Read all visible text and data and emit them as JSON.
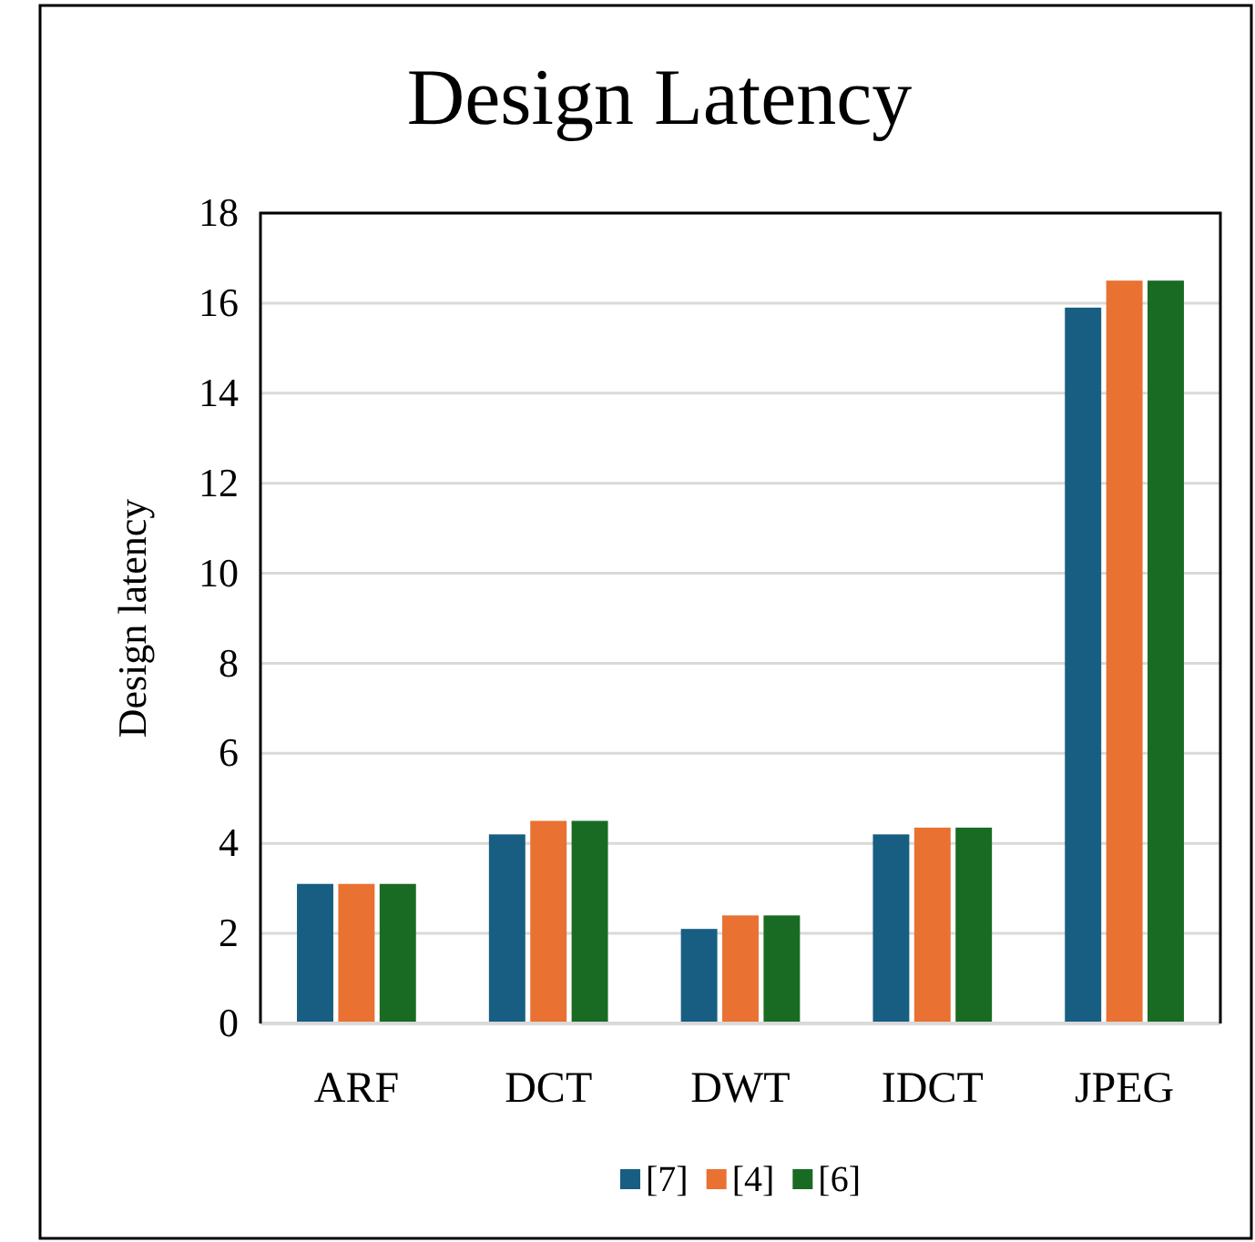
{
  "chart_data": {
    "type": "bar",
    "title": "Design Latency",
    "ylabel": "Design latency",
    "categories": [
      "ARF",
      "DCT",
      "DWT",
      "IDCT",
      "JPEG"
    ],
    "series": [
      {
        "name": "[7]",
        "color": "#175e82",
        "values": [
          3.1,
          4.2,
          2.1,
          4.2,
          15.9
        ]
      },
      {
        "name": "[4]",
        "color": "#e97132",
        "values": [
          3.1,
          4.5,
          2.4,
          4.35,
          16.5
        ]
      },
      {
        "name": "[6]",
        "color": "#196b24",
        "values": [
          3.1,
          4.5,
          2.4,
          4.35,
          16.5
        ]
      }
    ],
    "ylim": [
      0,
      18
    ],
    "yticks": [
      0,
      2,
      4,
      6,
      8,
      10,
      12,
      14,
      16,
      18
    ],
    "grid": "y",
    "legend": "bottom"
  }
}
